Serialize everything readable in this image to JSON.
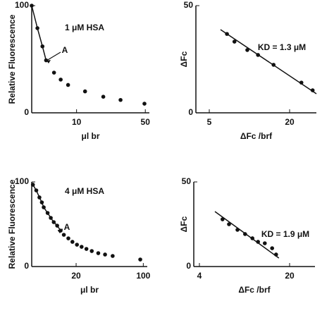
{
  "chart_data": [
    {
      "type": "scatter",
      "xscale": "log",
      "xlim": [
        3.5,
        55
      ],
      "ylim": [
        0,
        100
      ],
      "xticks": [
        10,
        50
      ],
      "yticks": [
        0,
        100
      ],
      "xlabel": "μl br",
      "ylabel": "Relative Fluorescence",
      "annotations": [
        "1 μM HSA",
        "A"
      ],
      "color": "#111111",
      "series": [
        {
          "line": true,
          "markers": true,
          "x": [
            3.5,
            4.0,
            4.5,
            4.9
          ],
          "values": [
            100,
            79,
            62,
            49
          ]
        },
        {
          "line": false,
          "markers": true,
          "x": [
            5.9,
            6.9,
            8.2,
            12.2,
            18.7,
            28,
            49
          ],
          "values": [
            37.5,
            31,
            26,
            20,
            15,
            12,
            8.5
          ]
        }
      ]
    },
    {
      "type": "scatter",
      "xscale": "linear",
      "xlim": [
        2.5,
        25
      ],
      "ylim": [
        0,
        50
      ],
      "xticks": [
        5,
        20
      ],
      "yticks": [
        0,
        50
      ],
      "xlabel": "ΔFc /brf",
      "ylabel": "ΔFc",
      "annotations": [
        "KD = 1.3 μM"
      ],
      "color": "#111111",
      "series": [
        {
          "line": false,
          "markers": true,
          "x": [
            8.3,
            9.7,
            12.1,
            14.1,
            17,
            22.2,
            24.3
          ],
          "values": [
            36.8,
            33.2,
            29.3,
            27,
            22.4,
            14.1,
            10.5
          ]
        },
        {
          "line": true,
          "markers": false,
          "x": [
            7.1,
            25
          ],
          "values": [
            38.8,
            8.9
          ]
        }
      ]
    },
    {
      "type": "scatter",
      "xscale": "log",
      "xlim": [
        6.9,
        110
      ],
      "ylim": [
        0,
        100
      ],
      "xticks": [
        20,
        100
      ],
      "yticks": [
        0,
        100
      ],
      "xlabel": "μl br",
      "ylabel": "Relative Fluorescence",
      "annotations": [
        "4 μM HSA",
        "A"
      ],
      "color": "#111111",
      "series": [
        {
          "line": true,
          "markers": true,
          "x": [
            7.1,
            7.7,
            8.3,
            8.8,
            9.2,
            10.1,
            10.9,
            11.7,
            12.7,
            13.8
          ],
          "values": [
            96.7,
            90,
            81.7,
            75.8,
            70,
            63.3,
            57.5,
            52.5,
            48.3,
            42.5
          ]
        },
        {
          "line": false,
          "markers": true,
          "x": [
            14.9,
            16.6,
            18.3,
            20.4,
            22.8,
            25.6,
            29.1,
            34,
            40,
            48,
            93
          ],
          "values": [
            37.5,
            33.3,
            29.2,
            25.8,
            23.3,
            20.8,
            18.3,
            15.8,
            14.2,
            12.5,
            8.3
          ]
        }
      ]
    },
    {
      "type": "scatter",
      "xscale": "linear",
      "xlim": [
        3,
        24.5
      ],
      "ylim": [
        0,
        50
      ],
      "xticks": [
        4,
        20
      ],
      "yticks": [
        0,
        50
      ],
      "xlabel": "ΔFc /brf",
      "ylabel": "ΔFc",
      "annotations": [
        "KD = 1.9 μM"
      ],
      "color": "#111111",
      "series": [
        {
          "line": false,
          "markers": true,
          "x": [
            8.1,
            9.25,
            10.75,
            12.1,
            13.4,
            14.4,
            15.6,
            16.9,
            17.6
          ],
          "values": [
            27.9,
            25,
            21.7,
            19.2,
            16.7,
            14.6,
            13.75,
            10.8,
            7.1
          ]
        },
        {
          "line": true,
          "markers": false,
          "x": [
            6.75,
            18.1
          ],
          "values": [
            32.5,
            5
          ]
        }
      ]
    }
  ]
}
